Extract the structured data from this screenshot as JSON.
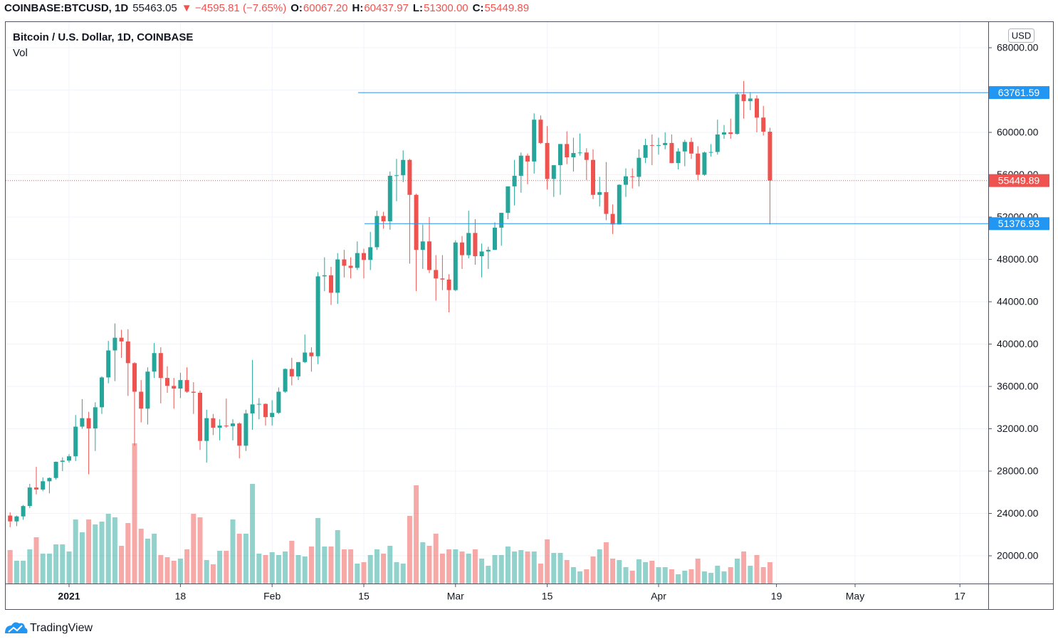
{
  "header": {
    "symbol": "COINBASE:BTCUSD, 1D",
    "price": "55463.05",
    "change": "−4595.81 (−7.65%)",
    "ohlc": [
      {
        "label": "O:",
        "value": "60067.20"
      },
      {
        "label": "H:",
        "value": "60437.97"
      },
      {
        "label": "L:",
        "value": "51300.00"
      },
      {
        "label": "C:",
        "value": "55449.89"
      }
    ]
  },
  "chart_data": {
    "type": "candlestick",
    "title": "Bitcoin / U.S. Dollar, 1D, COINBASE",
    "volume_label": "Vol",
    "currency": "USD",
    "up_color": "#26a69a",
    "down_color": "#ef5350",
    "grid": true,
    "ylim": [
      17380,
      70490
    ],
    "yticks": [
      {
        "value": 20000,
        "label": "20000.00"
      },
      {
        "value": 24000,
        "label": "24000.00"
      },
      {
        "value": 28000,
        "label": "28000.00"
      },
      {
        "value": 32000,
        "label": "32000.00"
      },
      {
        "value": 36000,
        "label": "36000.00"
      },
      {
        "value": 40000,
        "label": "40000.00"
      },
      {
        "value": 44000,
        "label": "44000.00"
      },
      {
        "value": 48000,
        "label": "48000.00"
      },
      {
        "value": 52000,
        "label": "52000.00"
      },
      {
        "value": 56000,
        "label": "56000.00"
      },
      {
        "value": 60000,
        "label": "60000.00"
      },
      {
        "value": 64000,
        "label": "64000.00"
      },
      {
        "value": 68000,
        "label": "68000.00"
      }
    ],
    "vlim": [
      0,
      100000
    ],
    "price_lines": [
      {
        "value": 63761.59,
        "color": "#2196f3"
      },
      {
        "value": 51376.93,
        "color": "#2196f3"
      }
    ],
    "categories": [
      null,
      null,
      null,
      null,
      null,
      null,
      null,
      null,
      null,
      "2021",
      null,
      null,
      null,
      null,
      null,
      null,
      null,
      null,
      null,
      null,
      null,
      null,
      null,
      null,
      null,
      null,
      "18",
      null,
      null,
      null,
      null,
      null,
      null,
      null,
      null,
      null,
      null,
      null,
      null,
      null,
      "Feb",
      null,
      null,
      null,
      null,
      null,
      null,
      null,
      null,
      null,
      null,
      null,
      null,
      null,
      "15",
      null,
      null,
      null,
      null,
      null,
      null,
      null,
      null,
      null,
      null,
      null,
      null,
      null,
      "Mar",
      null,
      null,
      null,
      null,
      null,
      null,
      null,
      null,
      null,
      null,
      null,
      null,
      null,
      "15",
      null,
      null,
      null,
      null,
      null,
      null,
      null,
      null,
      null,
      null,
      null,
      null,
      null,
      null,
      null,
      null,
      "Apr",
      null,
      null,
      null,
      null,
      null,
      null,
      null,
      null,
      null,
      null,
      null,
      null,
      null,
      null,
      null,
      null,
      null,
      "19",
      null,
      null,
      null,
      null,
      null,
      null,
      null,
      null,
      null,
      null,
      null,
      "May",
      null,
      null,
      null,
      null,
      null,
      null,
      null,
      null,
      null,
      null,
      null,
      null,
      null,
      null,
      null,
      "17",
      null,
      null,
      null,
      null
    ],
    "open": [
      23800,
      23250,
      23720,
      24700,
      26450,
      26260,
      27040,
      27350,
      28880,
      28990,
      29400,
      32200,
      33000,
      32030,
      34030,
      36850,
      39400,
      40600,
      40250,
      38200,
      35500,
      33900,
      37400,
      39150,
      36800,
      36050,
      35800,
      36600,
      35500,
      35400,
      30850,
      33000,
      32100,
      32300,
      32250,
      32500,
      30400,
      33450,
      34300,
      34350,
      33100,
      33500,
      35500,
      37650,
      36950,
      38300,
      39200,
      38850,
      46400,
      46500,
      44850,
      48000,
      47400,
      47200,
      48600,
      47950,
      49150,
      52100,
      51600,
      55900,
      55950,
      57400,
      54100,
      48900,
      49700,
      47000,
      46200,
      46100,
      45100,
      49600,
      48400,
      50500,
      48300,
      48750,
      48900,
      51000,
      52400,
      54900,
      55900,
      57800,
      57250,
      61200,
      59000,
      55600,
      56900,
      58900,
      57650,
      58050,
      58100,
      57400,
      54100,
      54350,
      52300,
      51300,
      55050,
      55850,
      55800,
      57600,
      58800,
      58750,
      58800,
      59000,
      57100,
      58200,
      59100,
      58000,
      56000,
      58100,
      58150,
      59800,
      60000,
      59850,
      63600,
      62950,
      63200,
      61400,
      60067.2,
      null,
      null,
      null,
      null,
      null,
      null,
      null,
      null,
      null,
      null,
      null,
      null,
      null,
      null,
      null,
      null,
      null,
      null,
      null,
      null,
      null,
      null,
      null,
      null,
      null,
      null,
      null,
      null,
      null,
      null,
      null,
      null,
      null
    ],
    "high": [
      24100,
      23800,
      24800,
      26800,
      28400,
      27400,
      27400,
      28900,
      29300,
      29600,
      33300,
      34800,
      33600,
      34500,
      36950,
      40300,
      41950,
      41350,
      41400,
      38300,
      36600,
      37800,
      40100,
      39700,
      37900,
      36800,
      37300,
      37800,
      36400,
      35600,
      33800,
      33400,
      32900,
      34850,
      32900,
      32600,
      33800,
      38500,
      34900,
      34400,
      34700,
      35900,
      37700,
      38700,
      38300,
      40900,
      39700,
      46800,
      48200,
      47300,
      48600,
      48900,
      48200,
      49700,
      49000,
      50600,
      52600,
      52500,
      56300,
      57500,
      58300,
      57500,
      54200,
      51300,
      52000,
      48400,
      48400,
      46600,
      49800,
      50200,
      52600,
      51800,
      49500,
      49200,
      51500,
      52400,
      54900,
      57400,
      58100,
      58000,
      61800,
      61600,
      60600,
      56900,
      58900,
      60100,
      59500,
      59900,
      58500,
      58400,
      55800,
      57200,
      53200,
      55100,
      56600,
      56600,
      58400,
      59400,
      59800,
      59500,
      60000,
      59800,
      58500,
      59300,
      59500,
      58700,
      58200,
      58900,
      61200,
      60700,
      61300,
      63800,
      64850,
      63800,
      63500,
      62500,
      60437.97,
      null,
      null,
      null,
      null,
      null,
      null,
      null,
      null,
      null,
      null,
      null,
      null,
      null,
      null,
      null,
      null,
      null,
      null,
      null,
      null,
      null,
      null,
      null,
      null,
      null,
      null,
      null,
      null,
      null,
      null,
      null,
      null,
      null
    ],
    "low": [
      22700,
      22800,
      23400,
      24500,
      25800,
      26100,
      25900,
      27200,
      28000,
      28800,
      28950,
      32000,
      27700,
      29900,
      33400,
      36300,
      36500,
      38700,
      35100,
      30400,
      32600,
      32400,
      36800,
      34400,
      35400,
      33900,
      34900,
      35400,
      33400,
      30000,
      28800,
      31400,
      30900,
      32100,
      30900,
      29200,
      29900,
      31900,
      32900,
      32300,
      32300,
      33400,
      35400,
      36100,
      36600,
      38200,
      37400,
      38100,
      45000,
      43700,
      43800,
      46300,
      46200,
      47000,
      46200,
      47000,
      48900,
      50900,
      50800,
      53500,
      55300,
      47600,
      45000,
      47100,
      46700,
      44100,
      45100,
      43000,
      45000,
      47100,
      48100,
      47500,
      46300,
      47100,
      48900,
      49300,
      51800,
      53100,
      54300,
      55100,
      56100,
      58900,
      54600,
      53900,
      54100,
      57000,
      56300,
      57800,
      55500,
      53700,
      53000,
      51700,
      50400,
      51300,
      53900,
      54700,
      54900,
      57100,
      56900,
      57900,
      58400,
      57100,
      56500,
      56800,
      57500,
      55500,
      55900,
      57700,
      57900,
      59400,
      59400,
      59800,
      61300,
      62100,
      60000,
      59700,
      51300,
      null,
      null,
      null,
      null,
      null,
      null,
      null,
      null,
      null,
      null,
      null,
      null,
      null,
      null,
      null,
      null,
      null,
      null,
      null,
      null,
      null,
      null,
      null,
      null,
      null,
      null,
      null,
      null,
      null,
      null,
      null,
      null,
      null
    ],
    "close": [
      23250,
      23720,
      24700,
      26450,
      26260,
      27040,
      27350,
      28880,
      28990,
      29400,
      32200,
      33000,
      32030,
      34030,
      36850,
      39400,
      40600,
      40250,
      38200,
      35500,
      33900,
      37400,
      39150,
      36800,
      36050,
      35800,
      36600,
      35500,
      35400,
      30850,
      33000,
      32100,
      32300,
      32250,
      32500,
      30400,
      33450,
      34300,
      34350,
      33100,
      33500,
      35500,
      37650,
      36950,
      38300,
      39200,
      38850,
      46400,
      46500,
      44850,
      48000,
      47400,
      47200,
      48600,
      47950,
      49150,
      52100,
      51600,
      55900,
      55950,
      57400,
      54100,
      48900,
      49700,
      47000,
      46200,
      46100,
      45100,
      49600,
      48400,
      50500,
      48300,
      48750,
      48900,
      51000,
      52400,
      54900,
      55900,
      57800,
      57250,
      61200,
      59000,
      55600,
      56900,
      58900,
      57650,
      58050,
      58100,
      57400,
      54100,
      54350,
      52300,
      51300,
      55050,
      55850,
      55800,
      57600,
      58800,
      58750,
      58800,
      59000,
      57100,
      58200,
      59100,
      58000,
      56000,
      58100,
      58150,
      59800,
      60000,
      59850,
      63600,
      62950,
      63200,
      61400,
      60067.2,
      55449.89,
      null,
      null,
      null,
      null,
      null,
      null,
      null,
      null,
      null,
      null,
      null,
      null,
      null,
      null,
      null,
      null,
      null,
      null,
      null,
      null,
      null,
      null,
      null,
      null,
      null,
      null,
      null,
      null,
      null,
      null,
      null,
      null,
      null
    ],
    "volume": [
      23500,
      16000,
      16000,
      24000,
      32500,
      21000,
      21000,
      27500,
      27500,
      22500,
      45000,
      36000,
      45000,
      41500,
      43500,
      49000,
      46500,
      26500,
      42500,
      98500,
      38500,
      31500,
      35000,
      20000,
      18500,
      16000,
      17500,
      24000,
      49000,
      46500,
      16500,
      13500,
      23000,
      23000,
      45000,
      35000,
      35000,
      70000,
      21000,
      20000,
      22000,
      20000,
      22500,
      30000,
      20000,
      19000,
      26000,
      46000,
      26000,
      26000,
      37500,
      24000,
      24000,
      14000,
      15000,
      20000,
      24000,
      21000,
      26500,
      15000,
      14000,
      47500,
      69000,
      29000,
      26500,
      35000,
      21000,
      24000,
      24000,
      22500,
      21000,
      24000,
      17500,
      12500,
      20000,
      20000,
      26000,
      22500,
      23500,
      22500,
      22500,
      14000,
      31000,
      21500,
      21500,
      16500,
      11500,
      8500,
      10000,
      19000,
      24000,
      29000,
      17500,
      16500,
      11500,
      9000,
      17000,
      15000,
      16000,
      11500,
      11500,
      10000,
      6500,
      9000,
      10000,
      17500,
      8500,
      7500,
      12500,
      8500,
      11500,
      17500,
      22500,
      12500,
      20000,
      11500,
      15000,
      null,
      null,
      null,
      null,
      null,
      null,
      null,
      null,
      null,
      null,
      null,
      null,
      null,
      null,
      null,
      null,
      null,
      null,
      null,
      null,
      null,
      null,
      null,
      null,
      null,
      null,
      null,
      null,
      null,
      null,
      null,
      null,
      null
    ]
  },
  "brand": "TradingView"
}
